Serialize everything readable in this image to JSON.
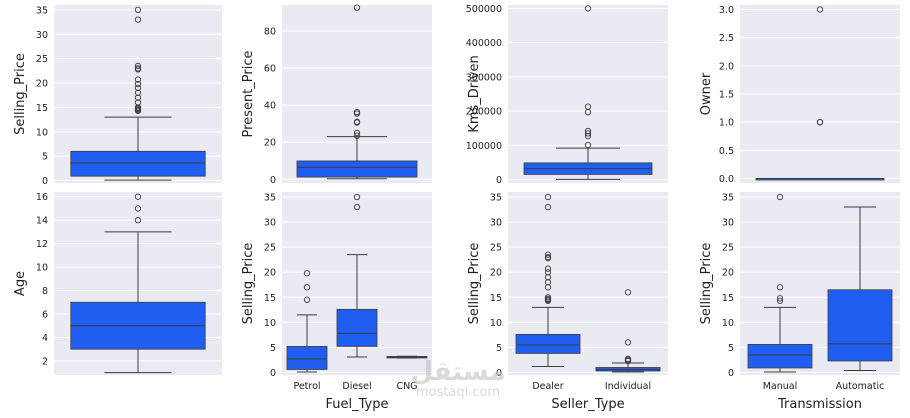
{
  "colors": {
    "box_fill": "#1f5ef0",
    "panel_bg": "#eaeaf2",
    "grid": "#ffffff",
    "line": "#3d3d3d"
  },
  "watermark": {
    "logo_text": "مستقل",
    "domain": "mostaql.com"
  },
  "chart_data": [
    {
      "type": "box",
      "title": "",
      "xlabel": "",
      "ylabel": "Selling_Price",
      "ylim": [
        -0.5,
        36
      ],
      "yticks": [
        0,
        5,
        10,
        15,
        20,
        25,
        30,
        35
      ],
      "categories": [
        ""
      ],
      "boxes": [
        {
          "category": "",
          "whisker_low": 0.1,
          "q1": 0.9,
          "median": 3.6,
          "q3": 6.0,
          "whisker_high": 13.0,
          "outliers": [
            14.3,
            14.5,
            14.7,
            14.9,
            15.0,
            16.0,
            17.0,
            18.0,
            19.0,
            19.8,
            20.7,
            22.8,
            23.0,
            23.5,
            33.0,
            35.0
          ]
        }
      ]
    },
    {
      "type": "box",
      "title": "",
      "xlabel": "",
      "ylabel": "Present_Price",
      "ylim": [
        -2,
        94
      ],
      "yticks": [
        0,
        20,
        40,
        60,
        80
      ],
      "categories": [
        ""
      ],
      "boxes": [
        {
          "category": "",
          "whisker_low": 0.3,
          "q1": 1.2,
          "median": 6.4,
          "q3": 9.9,
          "whisker_high": 23.0,
          "outliers": [
            23.5,
            25.0,
            30.6,
            31.0,
            35.5,
            36.2,
            92.6
          ]
        }
      ]
    },
    {
      "type": "box",
      "title": "",
      "xlabel": "",
      "ylabel": "Kms_Driven",
      "ylim": [
        -10000,
        510000
      ],
      "yticks": [
        0,
        100000,
        200000,
        300000,
        400000,
        500000
      ],
      "categories": [
        ""
      ],
      "boxes": [
        {
          "category": "",
          "whisker_low": 500,
          "q1": 15000,
          "median": 32000,
          "q3": 48800,
          "whisker_high": 92000,
          "outliers": [
            101000,
            127000,
            135000,
            142000,
            197000,
            213000,
            500000
          ]
        }
      ]
    },
    {
      "type": "box",
      "title": "",
      "xlabel": "",
      "ylabel": "Owner",
      "ylim": [
        -0.08,
        3.08
      ],
      "yticks": [
        0.0,
        0.5,
        1.0,
        1.5,
        2.0,
        2.5,
        3.0
      ],
      "categories": [
        ""
      ],
      "boxes": [
        {
          "category": "",
          "whisker_low": 0,
          "q1": 0,
          "median": 0,
          "q3": 0,
          "whisker_high": 0,
          "outliers": [
            1,
            1,
            3
          ]
        }
      ]
    },
    {
      "type": "box",
      "title": "",
      "xlabel": "",
      "ylabel": "Age",
      "ylim": [
        0.8,
        16.4
      ],
      "yticks": [
        2,
        4,
        6,
        8,
        10,
        12,
        14,
        16
      ],
      "categories": [
        ""
      ],
      "boxes": [
        {
          "category": "",
          "whisker_low": 1,
          "q1": 3,
          "median": 5,
          "q3": 7,
          "whisker_high": 13,
          "outliers": [
            14,
            15,
            16
          ]
        }
      ]
    },
    {
      "type": "box",
      "title": "",
      "xlabel": "Fuel_Type",
      "ylabel": "Selling_Price",
      "ylim": [
        -0.5,
        36
      ],
      "yticks": [
        0,
        5,
        10,
        15,
        20,
        25,
        30,
        35
      ],
      "categories": [
        "Petrol",
        "Diesel",
        "CNG"
      ],
      "boxes": [
        {
          "category": "Petrol",
          "whisker_low": 0.1,
          "q1": 0.6,
          "median": 2.7,
          "q3": 5.2,
          "whisker_high": 11.5,
          "outliers": [
            14.5,
            17.0,
            19.8
          ]
        },
        {
          "category": "Diesel",
          "whisker_low": 3.1,
          "q1": 5.2,
          "median": 7.8,
          "q3": 12.6,
          "whisker_high": 23.5,
          "outliers": [
            33.0,
            35.0
          ]
        },
        {
          "category": "CNG",
          "whisker_low": 2.9,
          "q1": 2.95,
          "median": 3.1,
          "q3": 3.2,
          "whisker_high": 3.25,
          "outliers": []
        }
      ]
    },
    {
      "type": "box",
      "title": "",
      "xlabel": "Seller_Type",
      "ylabel": "Selling_Price",
      "ylim": [
        -0.5,
        36
      ],
      "yticks": [
        0,
        5,
        10,
        15,
        20,
        25,
        30,
        35
      ],
      "categories": [
        "Dealer",
        "Individual"
      ],
      "boxes": [
        {
          "category": "Dealer",
          "whisker_low": 1.2,
          "q1": 3.8,
          "median": 5.5,
          "q3": 7.6,
          "whisker_high": 13.0,
          "outliers": [
            14.3,
            14.5,
            14.7,
            15.0,
            17.0,
            18.0,
            19.0,
            20.0,
            20.7,
            22.8,
            23.0,
            23.5,
            33.0,
            35.0
          ]
        },
        {
          "category": "Individual",
          "whisker_low": 0.1,
          "q1": 0.3,
          "median": 0.6,
          "q3": 1.0,
          "whisker_high": 1.9,
          "outliers": [
            2.3,
            2.5,
            2.7,
            6.0,
            16.0
          ]
        }
      ]
    },
    {
      "type": "box",
      "title": "",
      "xlabel": "Transmission",
      "ylabel": "Selling_Price",
      "ylim": [
        -0.5,
        36
      ],
      "yticks": [
        0,
        5,
        10,
        15,
        20,
        25,
        30,
        35
      ],
      "categories": [
        "Manual",
        "Automatic"
      ],
      "boxes": [
        {
          "category": "Manual",
          "whisker_low": 0.1,
          "q1": 0.9,
          "median": 3.5,
          "q3": 5.6,
          "whisker_high": 13.0,
          "outliers": [
            14.3,
            14.8,
            17.0,
            35.0
          ]
        },
        {
          "category": "Automatic",
          "whisker_low": 0.4,
          "q1": 2.3,
          "median": 5.7,
          "q3": 16.5,
          "whisker_high": 33.0,
          "outliers": []
        }
      ]
    }
  ]
}
